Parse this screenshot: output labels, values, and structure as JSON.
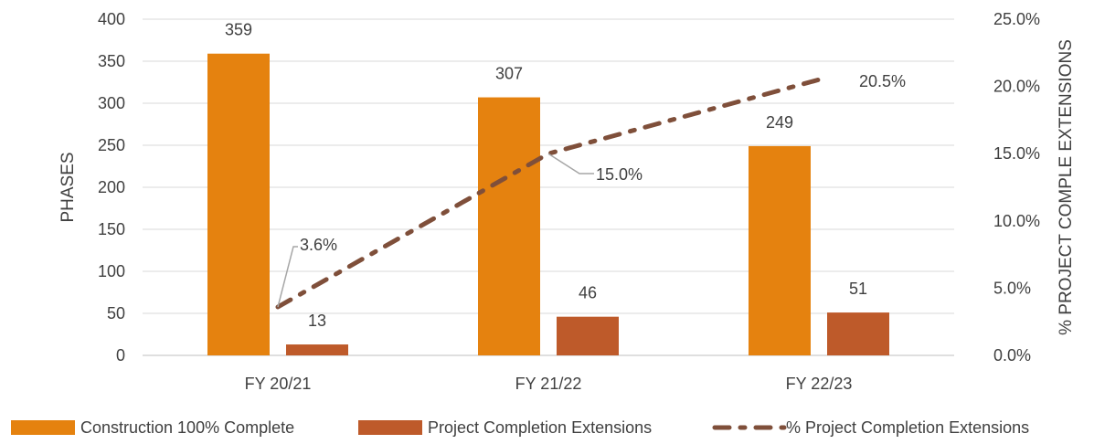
{
  "chart_data": {
    "type": "bar",
    "categories": [
      "FY 20/21",
      "FY 21/22",
      "FY 22/23"
    ],
    "series": [
      {
        "name": "Construction 100% Complete",
        "kind": "bar",
        "axis": "left",
        "color": "#E5820F",
        "values": [
          359,
          307,
          249
        ],
        "labels": [
          "359",
          "307",
          "249"
        ]
      },
      {
        "name": "Project Completion Extensions",
        "kind": "bar",
        "axis": "left",
        "color": "#BE5A2A",
        "values": [
          13,
          46,
          51
        ],
        "labels": [
          "13",
          "46",
          "51"
        ]
      },
      {
        "name": "% Project Completion Extensions",
        "kind": "line",
        "style": "dash-dot",
        "axis": "right",
        "color": "#7F4F3A",
        "values": [
          3.6,
          15.0,
          20.5
        ],
        "labels": [
          "3.6%",
          "15.0%",
          "20.5%"
        ]
      }
    ],
    "ylabel": "PHASES",
    "y2label": "% PROJECT COMPLE EXTENSIONS",
    "ylim": [
      0,
      400
    ],
    "y2lim": [
      0,
      25
    ],
    "yticks": [
      "0",
      "50",
      "100",
      "150",
      "200",
      "250",
      "300",
      "350",
      "400"
    ],
    "y2ticks": [
      "0.0%",
      "5.0%",
      "10.0%",
      "15.0%",
      "20.0%",
      "25.0%"
    ],
    "grid": true,
    "legend_position": "bottom"
  }
}
